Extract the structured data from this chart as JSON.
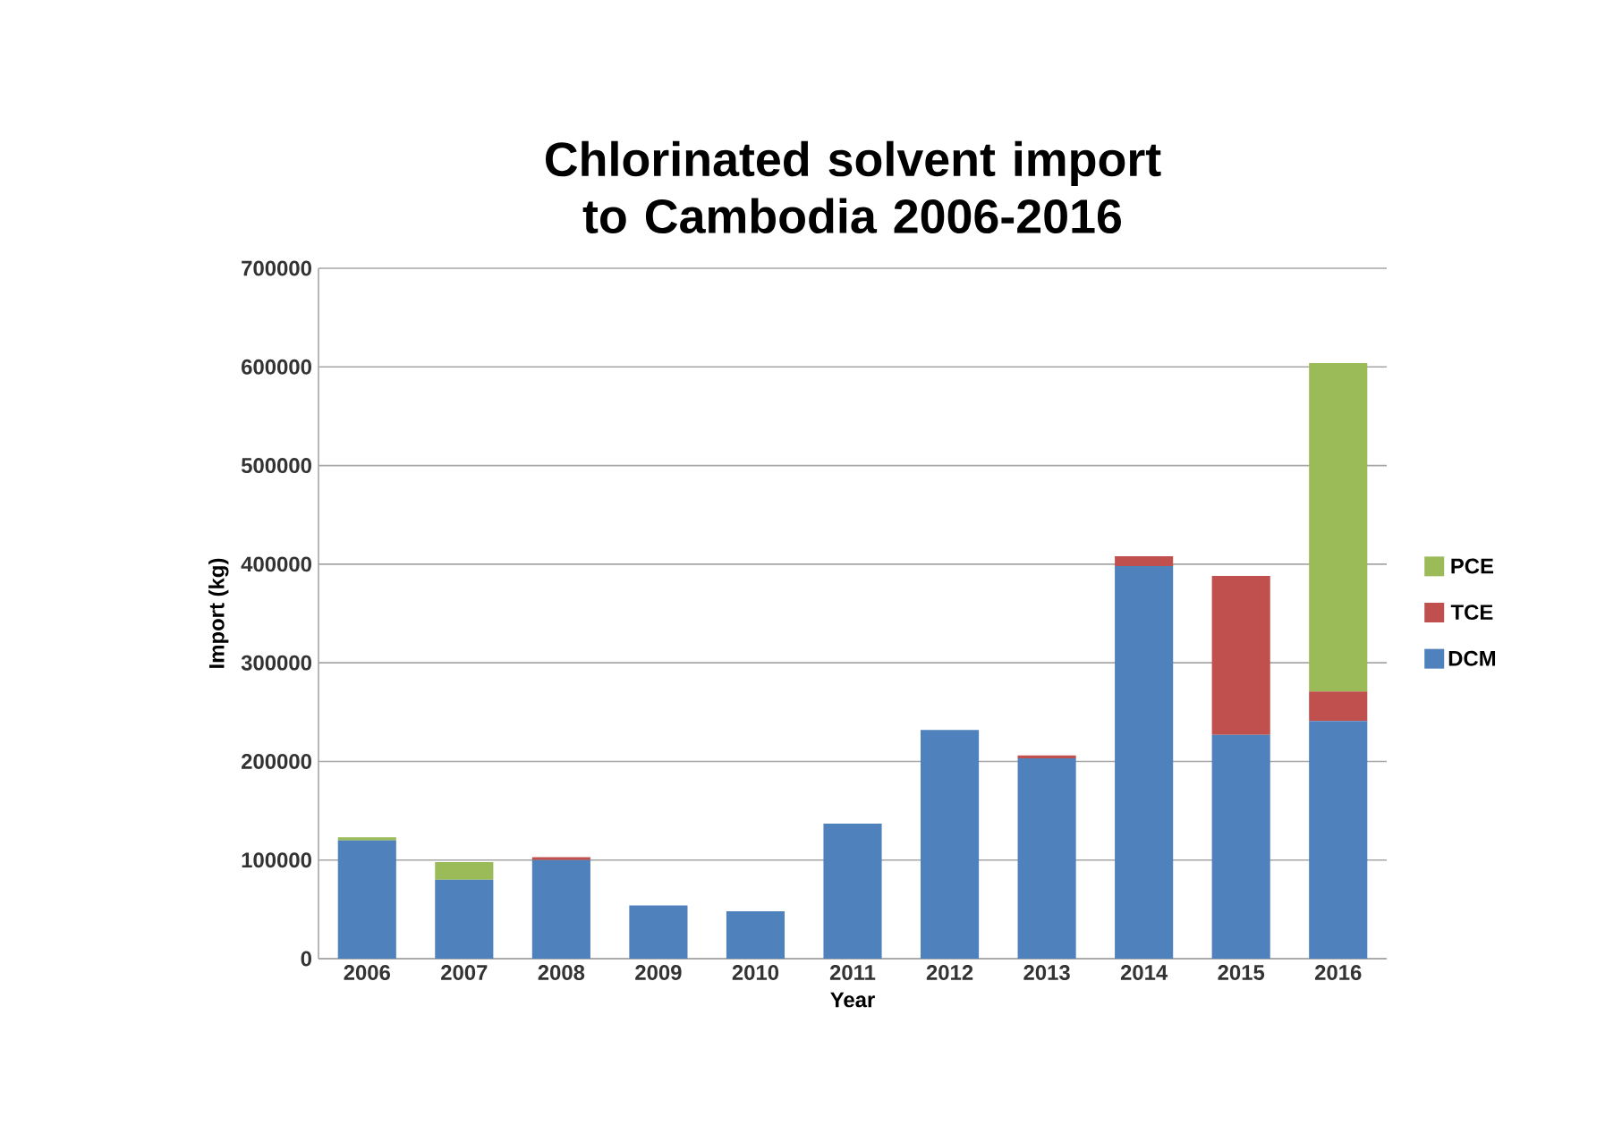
{
  "chart_data": {
    "type": "bar",
    "stacked": true,
    "title": "Chlorinated solvent import to Cambodia 2006-2016",
    "xlabel": "Year",
    "ylabel": "Import (kg)",
    "categories": [
      "2006",
      "2007",
      "2008",
      "2009",
      "2010",
      "2011",
      "2012",
      "2013",
      "2014",
      "2015",
      "2016"
    ],
    "series": [
      {
        "name": "DCM",
        "color": "#4f81bd",
        "values": [
          120000,
          80000,
          100000,
          54000,
          48000,
          137000,
          232000,
          203000,
          398000,
          227000,
          241000
        ]
      },
      {
        "name": "TCE",
        "color": "#c0504d",
        "values": [
          0,
          0,
          3000,
          0,
          0,
          0,
          0,
          3000,
          10000,
          161000,
          30000
        ]
      },
      {
        "name": "PCE",
        "color": "#9bbb59",
        "values": [
          3000,
          18000,
          0,
          0,
          0,
          0,
          0,
          0,
          0,
          0,
          333000
        ]
      }
    ],
    "ylim": [
      0,
      700000
    ],
    "yticks": [
      0,
      100000,
      200000,
      300000,
      400000,
      500000,
      600000,
      700000
    ],
    "grid": "y",
    "legend": "right"
  }
}
